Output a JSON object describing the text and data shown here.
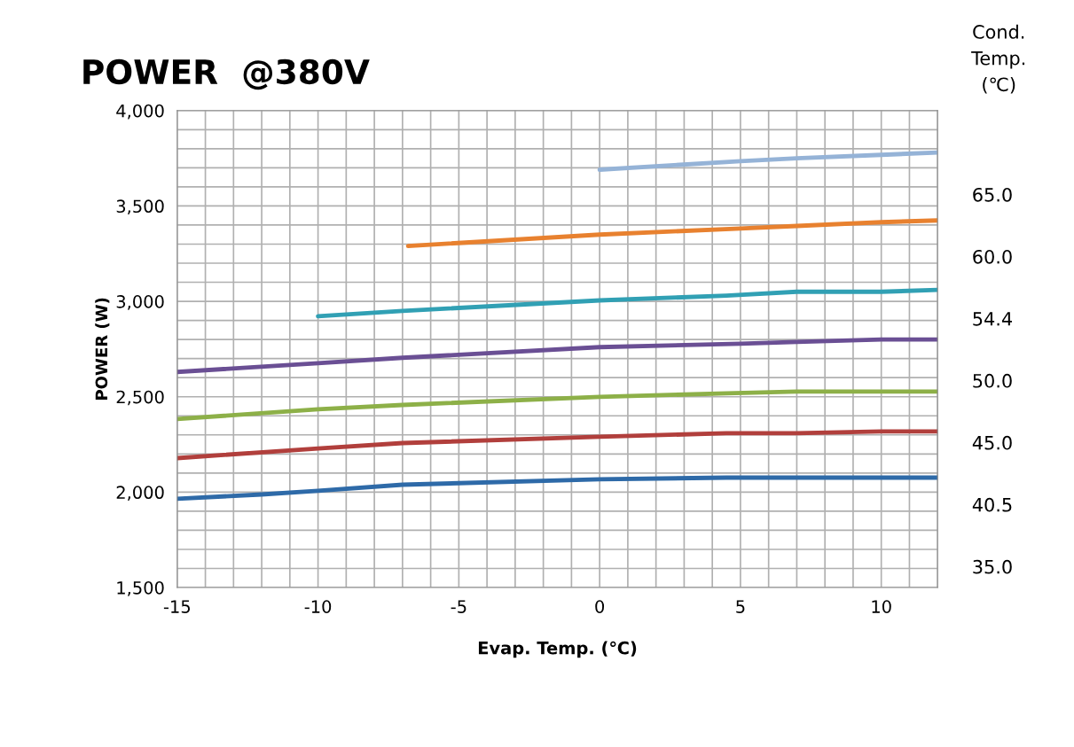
{
  "chart_data": {
    "type": "line",
    "title": "POWER  @380V",
    "xlabel": "Evap. Temp. (℃)",
    "ylabel": "POWER (W)",
    "legend_title": "Cond.\nTemp.\n(℃)",
    "xlim": [
      -15,
      12
    ],
    "ylim": [
      1500,
      4000
    ],
    "xticks": [
      -15,
      {
        "value": -14,
        "label": null
      },
      {
        "value": -13,
        "label": null
      },
      {
        "value": -12,
        "label": null
      },
      {
        "value": -11,
        "label": null
      },
      -10,
      {
        "value": -9,
        "label": null
      },
      {
        "value": -8,
        "label": null
      },
      {
        "value": -7,
        "label": null
      },
      {
        "value": -6,
        "label": null
      },
      -5,
      {
        "value": -4,
        "label": null
      },
      {
        "value": -3,
        "label": null
      },
      {
        "value": -2,
        "label": null
      },
      {
        "value": -1,
        "label": null
      },
      0,
      {
        "value": 1,
        "label": null
      },
      {
        "value": 2,
        "label": null
      },
      {
        "value": 3,
        "label": null
      },
      {
        "value": 4,
        "label": null
      },
      5,
      {
        "value": 6,
        "label": null
      },
      {
        "value": 7,
        "label": null
      },
      {
        "value": 8,
        "label": null
      },
      {
        "value": 9,
        "label": null
      },
      10,
      {
        "value": 11,
        "label": null
      },
      {
        "value": 12,
        "label": null
      }
    ],
    "yticks": [
      {
        "value": 1500,
        "label": "1,500"
      },
      {
        "value": 1600,
        "label": null
      },
      {
        "value": 1700,
        "label": null
      },
      {
        "value": 1800,
        "label": null
      },
      {
        "value": 1900,
        "label": null
      },
      {
        "value": 2000,
        "label": "2,000"
      },
      {
        "value": 2100,
        "label": null
      },
      {
        "value": 2200,
        "label": null
      },
      {
        "value": 2300,
        "label": null
      },
      {
        "value": 2400,
        "label": null
      },
      {
        "value": 2500,
        "label": "2,500"
      },
      {
        "value": 2600,
        "label": null
      },
      {
        "value": 2700,
        "label": null
      },
      {
        "value": 2800,
        "label": null
      },
      {
        "value": 2900,
        "label": null
      },
      {
        "value": 3000,
        "label": "3,000"
      },
      {
        "value": 3100,
        "label": null
      },
      {
        "value": 3200,
        "label": null
      },
      {
        "value": 3300,
        "label": null
      },
      {
        "value": 3400,
        "label": null
      },
      {
        "value": 3500,
        "label": "3,500"
      },
      {
        "value": 3600,
        "label": null
      },
      {
        "value": 3700,
        "label": null
      },
      {
        "value": 3800,
        "label": null
      },
      {
        "value": 3900,
        "label": null
      },
      {
        "value": 4000,
        "label": "4,000"
      }
    ],
    "grid": true,
    "marker": "none",
    "line_style": "solid",
    "legend": "right",
    "series": [
      {
        "name": "65.0",
        "color": "#95b3d7",
        "x": [
          0,
          5,
          7,
          10,
          12
        ],
        "values": [
          3690,
          3735,
          3750,
          3768,
          3780
        ]
      },
      {
        "name": "60.0",
        "color": "#e8812f",
        "x": [
          -6.8,
          0,
          5,
          7,
          10,
          12
        ],
        "values": [
          3290,
          3350,
          3382,
          3395,
          3415,
          3424
        ]
      },
      {
        "name": "54.4",
        "color": "#31a0b4",
        "x": [
          -10,
          -7,
          0,
          4.5,
          7,
          10,
          12
        ],
        "values": [
          2922,
          2950,
          3005,
          3030,
          3050,
          3050,
          3060
        ]
      },
      {
        "name": "50.0",
        "color": "#6a4f94",
        "x": [
          -15,
          -10,
          -7,
          0,
          5,
          7,
          10,
          12
        ],
        "values": [
          2630,
          2676,
          2704,
          2760,
          2778,
          2787,
          2800,
          2800
        ]
      },
      {
        "name": "45.0",
        "color": "#8db048",
        "x": [
          -15,
          -10,
          -7,
          0,
          4.5,
          7,
          12
        ],
        "values": [
          2383,
          2434,
          2457,
          2499,
          2518,
          2527,
          2527
        ]
      },
      {
        "name": "40.5",
        "color": "#b13f3c",
        "x": [
          -15,
          -10,
          -7,
          0,
          4.5,
          7,
          10,
          12
        ],
        "values": [
          2178,
          2229,
          2257,
          2290,
          2309,
          2309,
          2318,
          2318
        ]
      },
      {
        "name": "35.0",
        "color": "#2e6aa8",
        "x": [
          -15,
          -12,
          -10,
          -7,
          0,
          4.5,
          12
        ],
        "values": [
          1965,
          1988,
          2007,
          2039,
          2067,
          2076,
          2076
        ]
      }
    ]
  }
}
